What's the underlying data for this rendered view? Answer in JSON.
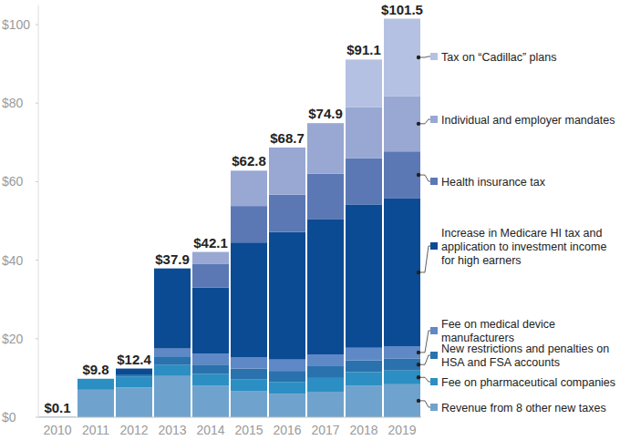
{
  "chart_data": {
    "type": "bar",
    "stacked": true,
    "legend": "right",
    "grid": false,
    "categories": [
      "2010",
      "2011",
      "2012",
      "2013",
      "2014",
      "2015",
      "2016",
      "2017",
      "2018",
      "2019"
    ],
    "ylim": [
      0,
      105
    ],
    "yticks": [
      {
        "value": 0,
        "label": "$0"
      },
      {
        "value": 20,
        "label": "$20"
      },
      {
        "value": 40,
        "label": "$40"
      },
      {
        "value": 60,
        "label": "$60"
      },
      {
        "value": 80,
        "label": "$80"
      },
      {
        "value": 100,
        "label": "$100"
      }
    ],
    "totals": [
      0.1,
      9.8,
      12.4,
      37.9,
      42.1,
      62.8,
      68.7,
      74.9,
      91.1,
      101.5
    ],
    "total_labels": [
      "$0.1",
      "$9.8",
      "$12.4",
      "$37.9",
      "$42.1",
      "$62.8",
      "$68.7",
      "$74.9",
      "$91.1",
      "$101.5"
    ],
    "series": [
      {
        "name": "Revenue from 8 other new taxes",
        "color": "#6fa3cd",
        "values": [
          0.1,
          7.0,
          7.6,
          10.5,
          8.0,
          6.7,
          6.0,
          6.5,
          8.0,
          8.4
        ]
      },
      {
        "name": "Fee on pharmaceutical companies",
        "color": "#2b8fc3",
        "values": [
          0,
          2.8,
          2.8,
          2.8,
          3.0,
          3.0,
          3.0,
          3.5,
          3.5,
          3.5
        ]
      },
      {
        "name": "New restrictions and penalties on HSA and FSA accounts",
        "color": "#2a72ae",
        "values": [
          0,
          0,
          0.5,
          2.2,
          2.4,
          2.7,
          2.8,
          3.0,
          3.0,
          3.0
        ]
      },
      {
        "name": "Fee on medical device manufacturers",
        "color": "#5f88c6",
        "values": [
          0,
          0,
          0,
          2.0,
          2.8,
          2.9,
          2.9,
          3.0,
          3.2,
          3.2
        ]
      },
      {
        "name": "Increase in Medicare HI tax and application to investment income for high earners",
        "color": "#0b4b94",
        "values": [
          0,
          0,
          1.5,
          20.4,
          16.8,
          29.2,
          32.5,
          34.5,
          36.5,
          37.6
        ]
      },
      {
        "name": "Health insurance tax",
        "color": "#5b78b5",
        "values": [
          0,
          0,
          0,
          0,
          6.0,
          9.3,
          9.5,
          11.5,
          11.8,
          12.0
        ]
      },
      {
        "name": "Individual and employer mandates",
        "color": "#98a8d3",
        "values": [
          0,
          0,
          0,
          0,
          3.1,
          9.0,
          12.0,
          12.9,
          13.0,
          14.1
        ]
      },
      {
        "name": "Tax on “Cadillac” plans",
        "color": "#b5c1e2",
        "values": [
          0,
          0,
          0,
          0,
          0,
          0,
          0,
          0,
          12.1,
          19.7
        ]
      }
    ]
  }
}
